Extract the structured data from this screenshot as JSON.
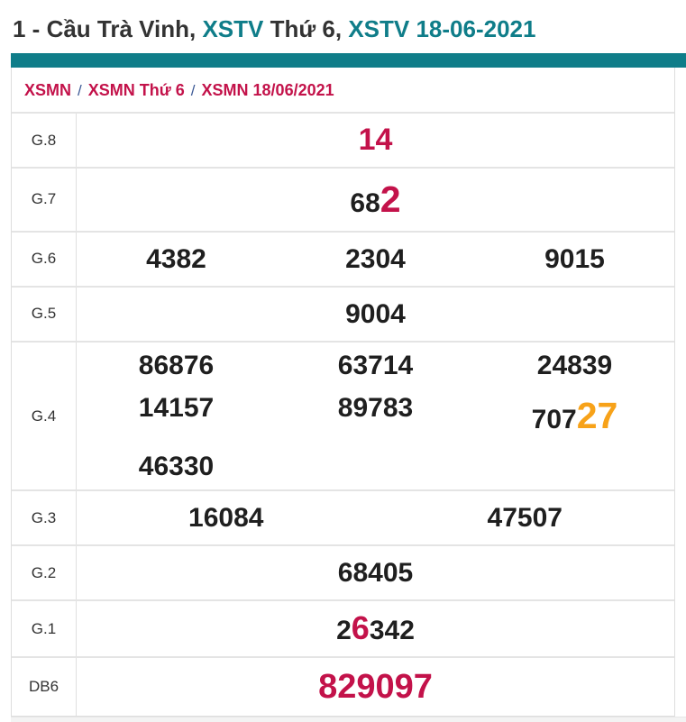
{
  "header": {
    "title_segments": [
      {
        "text": "1 - Cầu Trà Vinh, ",
        "color": "dark"
      },
      {
        "text": "XSTV ",
        "color": "teal"
      },
      {
        "text": "Thứ 6, ",
        "color": "dark"
      },
      {
        "text": "XSTV 18-06-2021",
        "color": "teal"
      }
    ]
  },
  "breadcrumb": {
    "items": [
      "XSMN",
      "XSMN Thứ 6",
      "XSMN 18/06/2021"
    ],
    "separator": "/"
  },
  "colors": {
    "teal": "#0f7d89",
    "crimson": "#c3124a",
    "orange": "#f7a219",
    "number_dark": "#1f1f1f"
  },
  "table": {
    "rows": [
      {
        "label": "G.8",
        "lines": [
          [
            [
              {
                "t": "14",
                "s": "crimson lg"
              }
            ]
          ]
        ]
      },
      {
        "label": "G.7",
        "lines": [
          [
            [
              {
                "t": "68"
              },
              {
                "t": "2",
                "s": "crimson xl"
              }
            ]
          ]
        ]
      },
      {
        "label": "G.6",
        "lines": [
          [
            [
              {
                "t": "4382"
              }
            ],
            [
              {
                "t": "2304"
              }
            ],
            [
              {
                "t": "9015"
              }
            ]
          ]
        ]
      },
      {
        "label": "G.5",
        "lines": [
          [
            [
              {
                "t": "9004"
              }
            ]
          ]
        ]
      },
      {
        "label": "G.4",
        "lines": [
          [
            [
              {
                "t": "86876"
              }
            ],
            [
              {
                "t": "63714"
              }
            ],
            [
              {
                "t": "24839"
              }
            ]
          ],
          [
            [
              {
                "t": "14157"
              }
            ],
            [
              {
                "t": "89783"
              }
            ],
            [
              {
                "t": "707"
              },
              {
                "t": "27",
                "s": "orange xl"
              }
            ]
          ],
          [
            [
              {
                "t": "46330"
              }
            ],
            [],
            []
          ]
        ]
      },
      {
        "label": "G.3",
        "lines": [
          [
            [
              {
                "t": "16084"
              }
            ],
            [
              {
                "t": "47507"
              }
            ]
          ]
        ]
      },
      {
        "label": "G.2",
        "lines": [
          [
            [
              {
                "t": "68405"
              }
            ]
          ]
        ]
      },
      {
        "label": "G.1",
        "lines": [
          [
            [
              {
                "t": "2"
              },
              {
                "t": "6",
                "s": "crimson md"
              },
              {
                "t": "342"
              }
            ]
          ]
        ]
      },
      {
        "label": "DB6",
        "lines": [
          [
            [
              {
                "t": "829097",
                "s": "crimson db"
              }
            ]
          ]
        ]
      }
    ]
  }
}
